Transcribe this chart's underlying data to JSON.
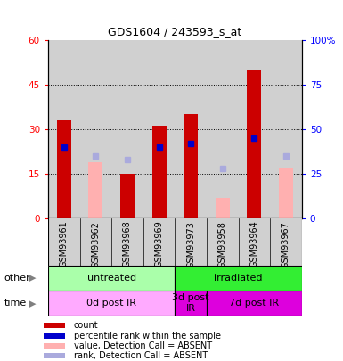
{
  "title": "GDS1604 / 243593_s_at",
  "samples": [
    "GSM93961",
    "GSM93962",
    "GSM93968",
    "GSM93969",
    "GSM93973",
    "GSM93958",
    "GSM93964",
    "GSM93967"
  ],
  "count_present": [
    33,
    null,
    15,
    31,
    35,
    null,
    50,
    null
  ],
  "count_absent": [
    null,
    19,
    null,
    null,
    null,
    7,
    null,
    17
  ],
  "rank_present": [
    40,
    null,
    null,
    40,
    42,
    null,
    45,
    null
  ],
  "rank_absent": [
    null,
    35,
    33,
    null,
    null,
    28,
    null,
    35
  ],
  "ylim_left": [
    0,
    60
  ],
  "ylim_right": [
    0,
    100
  ],
  "yticks_left": [
    0,
    15,
    30,
    45,
    60
  ],
  "yticks_right": [
    0,
    25,
    50,
    75,
    100
  ],
  "ytick_labels_left": [
    "0",
    "15",
    "30",
    "45",
    "60"
  ],
  "ytick_labels_right": [
    "0",
    "25",
    "50",
    "75",
    "100%"
  ],
  "bar_color_present": "#cc0000",
  "bar_color_absent": "#ffb0b0",
  "rank_color_present": "#0000cc",
  "rank_color_absent": "#aaaadd",
  "bg_color": "#d0d0d0",
  "chart_bg": "#ffffff",
  "other_row": [
    {
      "label": "untreated",
      "start": 0,
      "end": 4,
      "color": "#aaffaa"
    },
    {
      "label": "irradiated",
      "start": 4,
      "end": 8,
      "color": "#33ee33"
    }
  ],
  "time_row": [
    {
      "label": "0d post IR",
      "start": 0,
      "end": 4,
      "color": "#ffaaff"
    },
    {
      "label": "3d post\nIR",
      "start": 4,
      "end": 5,
      "color": "#dd00dd"
    },
    {
      "label": "7d post IR",
      "start": 5,
      "end": 8,
      "color": "#dd00dd"
    }
  ],
  "legend_items": [
    {
      "color": "#cc0000",
      "label": "count"
    },
    {
      "color": "#0000cc",
      "label": "percentile rank within the sample"
    },
    {
      "color": "#ffb0b0",
      "label": "value, Detection Call = ABSENT"
    },
    {
      "color": "#aaaadd",
      "label": "rank, Detection Call = ABSENT"
    }
  ]
}
